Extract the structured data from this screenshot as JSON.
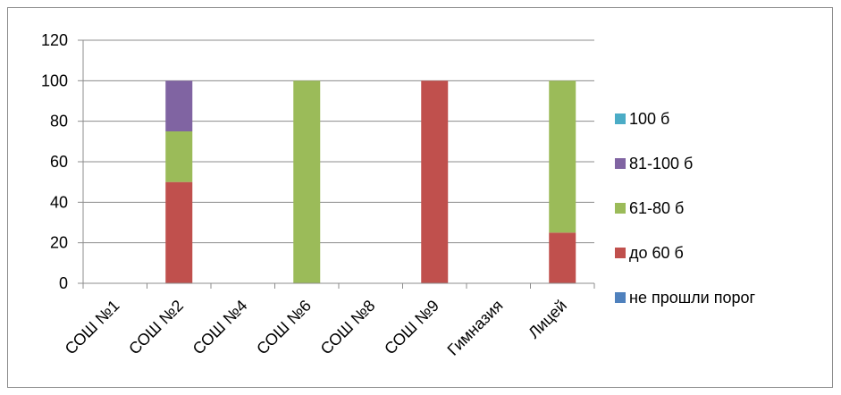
{
  "chart_data": {
    "type": "bar",
    "stacked": true,
    "categories": [
      "СОШ №1",
      "СОШ №2",
      "СОШ №4",
      "СОШ №6",
      "СОШ №8",
      "СОШ №9",
      "Гимназия",
      "Лицей"
    ],
    "series": [
      {
        "name": "не прошли порог",
        "color": "#4f81bd",
        "values": [
          0,
          0,
          0,
          0,
          0,
          0,
          0,
          0
        ]
      },
      {
        "name": "до 60 б",
        "color": "#c0504d",
        "values": [
          0,
          50,
          0,
          0,
          0,
          100,
          0,
          25
        ]
      },
      {
        "name": "61-80 б",
        "color": "#9bbb59",
        "values": [
          0,
          25,
          0,
          100,
          0,
          0,
          0,
          75
        ]
      },
      {
        "name": "81-100 б",
        "color": "#8064a2",
        "values": [
          0,
          25,
          0,
          0,
          0,
          0,
          0,
          0
        ]
      },
      {
        "name": "100 б",
        "color": "#4bacc6",
        "values": [
          0,
          0,
          0,
          0,
          0,
          0,
          0,
          0
        ]
      }
    ],
    "ylim": [
      0,
      120
    ],
    "yticks": [
      0,
      20,
      40,
      60,
      80,
      100,
      120
    ],
    "grid": true,
    "legend_position": "right",
    "legend_order": [
      "100 б",
      "81-100 б",
      "61-80 б",
      "до 60 б",
      "не прошли порог"
    ]
  }
}
